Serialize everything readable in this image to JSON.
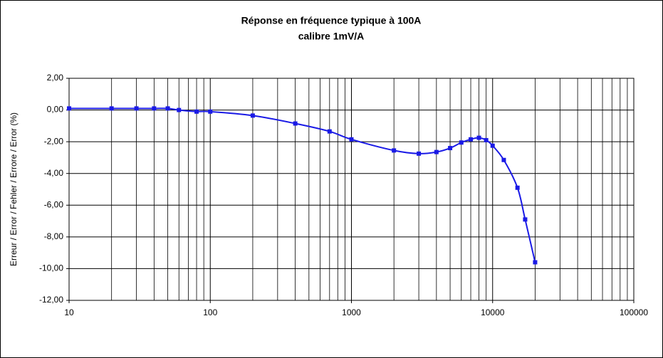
{
  "chart_data": {
    "type": "line",
    "title": "Réponse en fréquence typique à 100A",
    "subtitle": "calibre 1mV/A",
    "y_label": "Erreur / Error / Fehler / Errore / Error (%)",
    "x": [
      10,
      20,
      30,
      40,
      50,
      60,
      80,
      100,
      200,
      400,
      700,
      1000,
      2000,
      3000,
      4000,
      5000,
      6000,
      7000,
      8000,
      9000,
      10000,
      12000,
      15000,
      17000,
      20000
    ],
    "series": [
      {
        "color": "#1a1ae6",
        "values": [
          0.1,
          0.1,
          0.1,
          0.1,
          0.1,
          0.0,
          -0.1,
          -0.1,
          -0.35,
          -0.85,
          -1.35,
          -1.85,
          -2.55,
          -2.75,
          -2.65,
          -2.4,
          -2.05,
          -1.85,
          -1.75,
          -1.9,
          -2.25,
          -3.15,
          -4.9,
          -6.9,
          -9.6
        ]
      }
    ],
    "xlim": [
      10,
      100000
    ],
    "xticks": [
      10,
      100,
      1000,
      10000,
      100000
    ],
    "xscale": "log",
    "ylim": [
      -12,
      2
    ],
    "yticks": [
      {
        "value": -12,
        "label": "-12,00"
      },
      {
        "value": -10,
        "label": "-10,00"
      },
      {
        "value": -8,
        "label": "-8,00"
      },
      {
        "value": -6,
        "label": "-6,00"
      },
      {
        "value": -4,
        "label": "-4,00"
      },
      {
        "value": -2,
        "label": "-2,00"
      },
      {
        "value": 0,
        "label": "0,00"
      },
      {
        "value": 2,
        "label": "2,00"
      }
    ],
    "grid": true,
    "minor_grid": true
  }
}
